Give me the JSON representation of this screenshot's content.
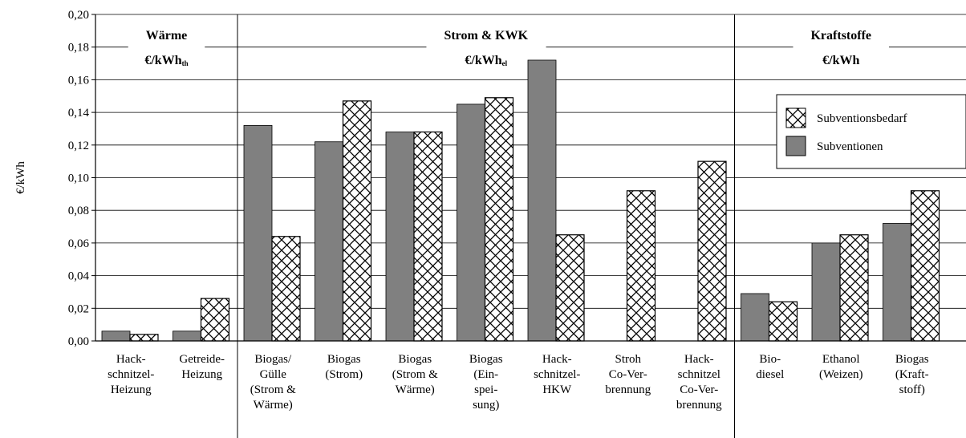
{
  "chart_data": {
    "type": "bar",
    "ylabel": "€/kWh",
    "ylim": [
      0,
      0.2
    ],
    "yticks": [
      "0,00",
      "0,02",
      "0,04",
      "0,06",
      "0,08",
      "0,10",
      "0,12",
      "0,14",
      "0,16",
      "0,18",
      "0,20"
    ],
    "grid": true,
    "legend_position": "right",
    "categories": [
      [
        "Hack-",
        "schnitzel-",
        "Heizung"
      ],
      [
        "Getreide-",
        "Heizung"
      ],
      [
        "Biogas/",
        "Gülle",
        "(Strom &",
        "Wärme)"
      ],
      [
        "Biogas",
        "(Strom)"
      ],
      [
        "Biogas",
        "(Strom &",
        "Wärme)"
      ],
      [
        "Biogas",
        "(Ein-",
        "spei-",
        "sung)"
      ],
      [
        "Hack-",
        "schnitzel-",
        "HKW"
      ],
      [
        "Stroh",
        "Co-Ver-",
        "brennung"
      ],
      [
        "Hack-",
        "schnitzel",
        "Co-Ver-",
        "brennung"
      ],
      [
        "Bio-",
        "diesel"
      ],
      [
        "Ethanol",
        "(Weizen)"
      ],
      [
        "Biogas",
        "(Kraft-",
        "stoff)"
      ]
    ],
    "groups": [
      {
        "title": "Wärme",
        "unit_main": "€/kWh",
        "unit_sub": "th",
        "start": 0,
        "end": 1
      },
      {
        "title": "Strom & KWK",
        "unit_main": "€/kWh",
        "unit_sub": "el",
        "start": 2,
        "end": 8
      },
      {
        "title": "Kraftstoffe",
        "unit_main": "€/kWh",
        "unit_sub": "",
        "start": 9,
        "end": 11
      }
    ],
    "series": [
      {
        "name": "Subventionen",
        "color": "#808080",
        "pattern": "solid",
        "values": [
          0.006,
          0.006,
          0.132,
          0.122,
          0.128,
          0.145,
          0.172,
          null,
          null,
          0.029,
          0.06,
          0.072
        ]
      },
      {
        "name": "Subventionsbedarf",
        "color": "#000000",
        "pattern": "crosshatch",
        "values": [
          0.004,
          0.026,
          0.064,
          0.147,
          0.128,
          0.149,
          0.065,
          0.092,
          0.11,
          0.024,
          0.065,
          0.092
        ]
      }
    ]
  }
}
